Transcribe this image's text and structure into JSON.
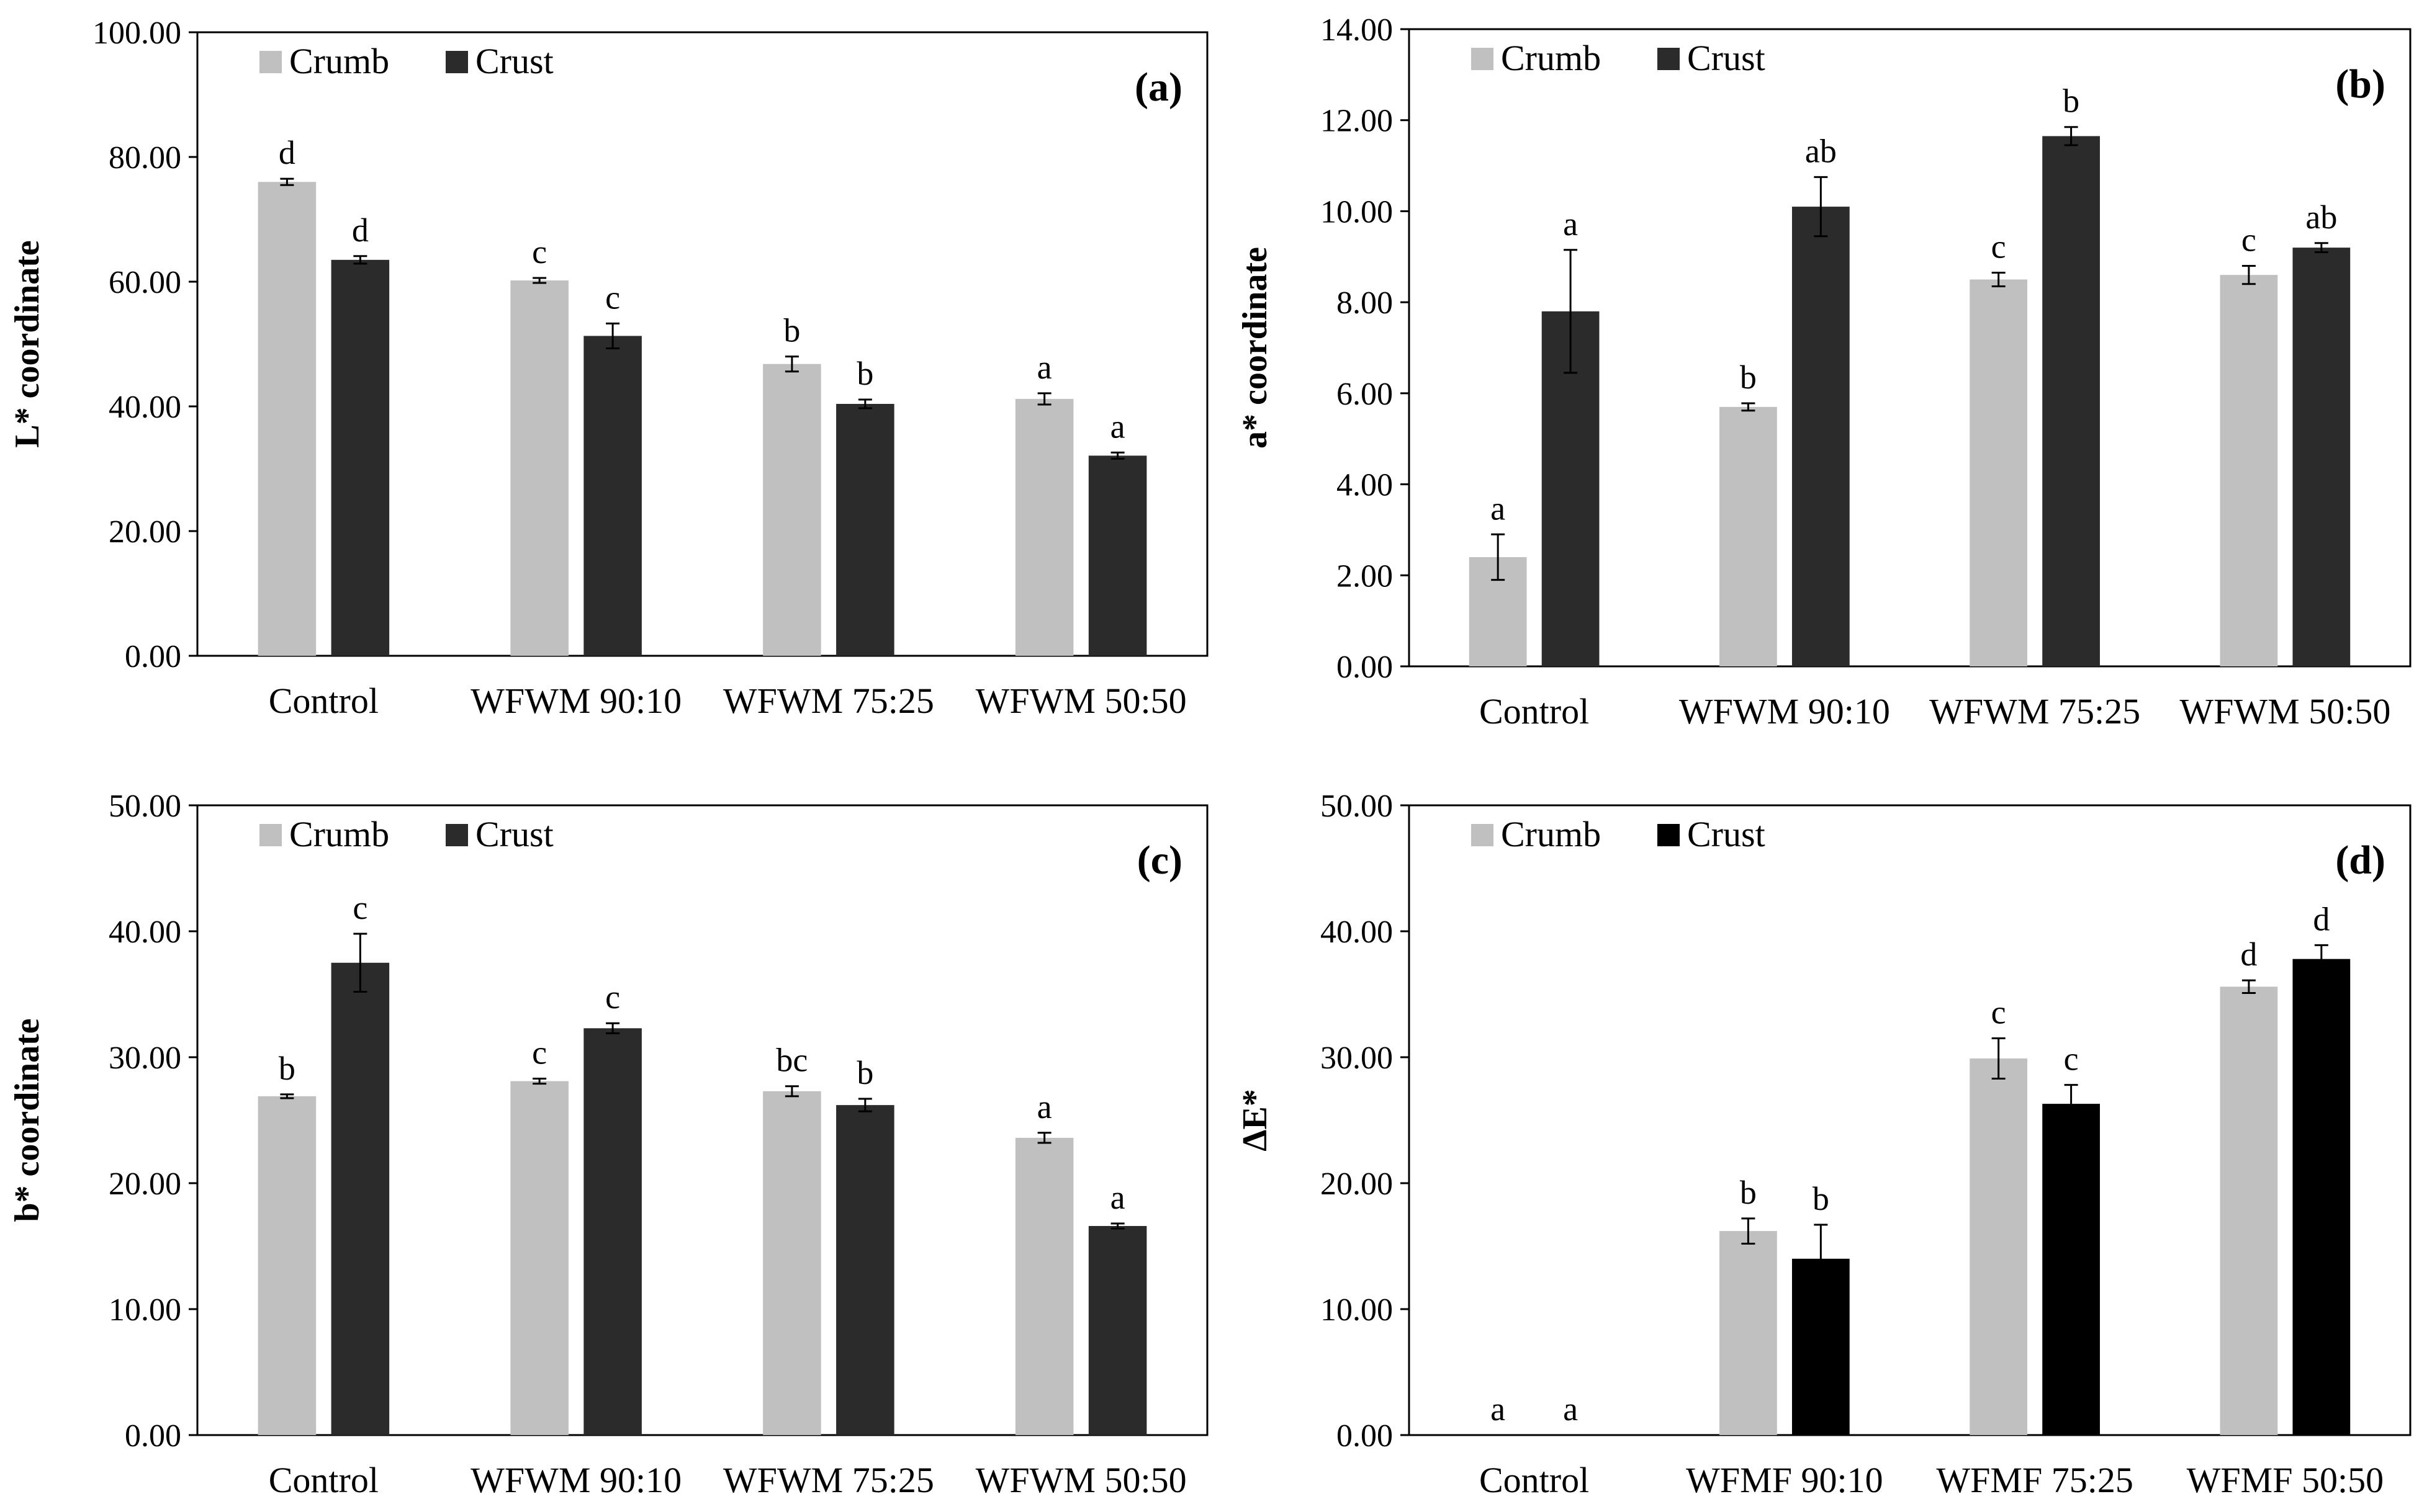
{
  "chart_data": [
    {
      "type": "bar",
      "panel_label": "(a)",
      "ylabel": "L* coordinate",
      "ylim": [
        0,
        100
      ],
      "yticks": [
        "0.00",
        "20.00",
        "40.00",
        "60.00",
        "80.00",
        "100.00"
      ],
      "categories": [
        "Control",
        "WFWM 90:10",
        "WFWM 75:25",
        "WFWM 50:50"
      ],
      "legend": [
        "Crumb",
        "Crust"
      ],
      "series": [
        {
          "name": "Crumb",
          "color": "#c0c0c0",
          "values": [
            76.0,
            60.2,
            46.8,
            41.2
          ],
          "errors": [
            0.5,
            0.4,
            1.2,
            0.9
          ],
          "labels": [
            "d",
            "c",
            "b",
            "a"
          ]
        },
        {
          "name": "Crust",
          "color": "#2b2b2b",
          "values": [
            63.5,
            51.3,
            40.4,
            32.1
          ],
          "errors": [
            0.6,
            2.0,
            0.7,
            0.5
          ],
          "labels": [
            "d",
            "c",
            "b",
            "a"
          ]
        }
      ]
    },
    {
      "type": "bar",
      "panel_label": "(b)",
      "ylabel": "a* coordinate",
      "ylim": [
        0,
        14
      ],
      "yticks": [
        "0.00",
        "2.00",
        "4.00",
        "6.00",
        "8.00",
        "10.00",
        "12.00",
        "14.00"
      ],
      "categories": [
        "Control",
        "WFWM 90:10",
        "WFWM 75:25",
        "WFWM 50:50"
      ],
      "legend": [
        "Crumb",
        "Crust"
      ],
      "series": [
        {
          "name": "Crumb",
          "color": "#c0c0c0",
          "values": [
            2.4,
            5.7,
            8.5,
            8.6
          ],
          "errors": [
            0.5,
            0.08,
            0.15,
            0.2
          ],
          "labels": [
            "a",
            "b",
            "c",
            "c"
          ]
        },
        {
          "name": "Crust",
          "color": "#2b2b2b",
          "values": [
            7.8,
            10.1,
            11.65,
            9.2
          ],
          "errors": [
            1.35,
            0.65,
            0.2,
            0.1
          ],
          "labels": [
            "a",
            "ab",
            "b",
            "ab"
          ]
        }
      ]
    },
    {
      "type": "bar",
      "panel_label": "(c)",
      "ylabel": "b* coordinate",
      "ylim": [
        0,
        50
      ],
      "yticks": [
        "0.00",
        "10.00",
        "20.00",
        "30.00",
        "40.00",
        "50.00"
      ],
      "categories": [
        "Control",
        "WFWM 90:10",
        "WFWM 75:25",
        "WFWM 50:50"
      ],
      "legend": [
        "Crumb",
        "Crust"
      ],
      "series": [
        {
          "name": "Crumb",
          "color": "#c0c0c0",
          "values": [
            26.9,
            28.1,
            27.3,
            23.6
          ],
          "errors": [
            0.15,
            0.2,
            0.4,
            0.4
          ],
          "labels": [
            "b",
            "c",
            "bc",
            "a"
          ]
        },
        {
          "name": "Crust",
          "color": "#2b2b2b",
          "values": [
            37.5,
            32.3,
            26.2,
            16.6
          ],
          "errors": [
            2.3,
            0.4,
            0.5,
            0.2
          ],
          "labels": [
            "c",
            "c",
            "b",
            "a"
          ]
        }
      ]
    },
    {
      "type": "bar",
      "panel_label": "(d)",
      "ylabel": "ΔE*",
      "ylim": [
        0,
        50
      ],
      "yticks": [
        "0.00",
        "10.00",
        "20.00",
        "30.00",
        "40.00",
        "50.00"
      ],
      "categories": [
        "Control",
        "WFMF 90:10",
        "WFMF 75:25",
        "WFMF 50:50"
      ],
      "legend": [
        "Crumb",
        "Crust"
      ],
      "series": [
        {
          "name": "Crumb",
          "color": "#c0c0c0",
          "values": [
            0,
            16.2,
            29.9,
            35.6
          ],
          "errors": [
            0,
            1.0,
            1.6,
            0.5
          ],
          "labels": [
            "a",
            "b",
            "c",
            "d"
          ]
        },
        {
          "name": "Crust",
          "color": "#000000",
          "values": [
            0,
            14.0,
            26.3,
            37.8
          ],
          "errors": [
            0,
            2.7,
            1.5,
            1.1
          ],
          "labels": [
            "a",
            "b",
            "c",
            "d"
          ]
        }
      ]
    }
  ]
}
